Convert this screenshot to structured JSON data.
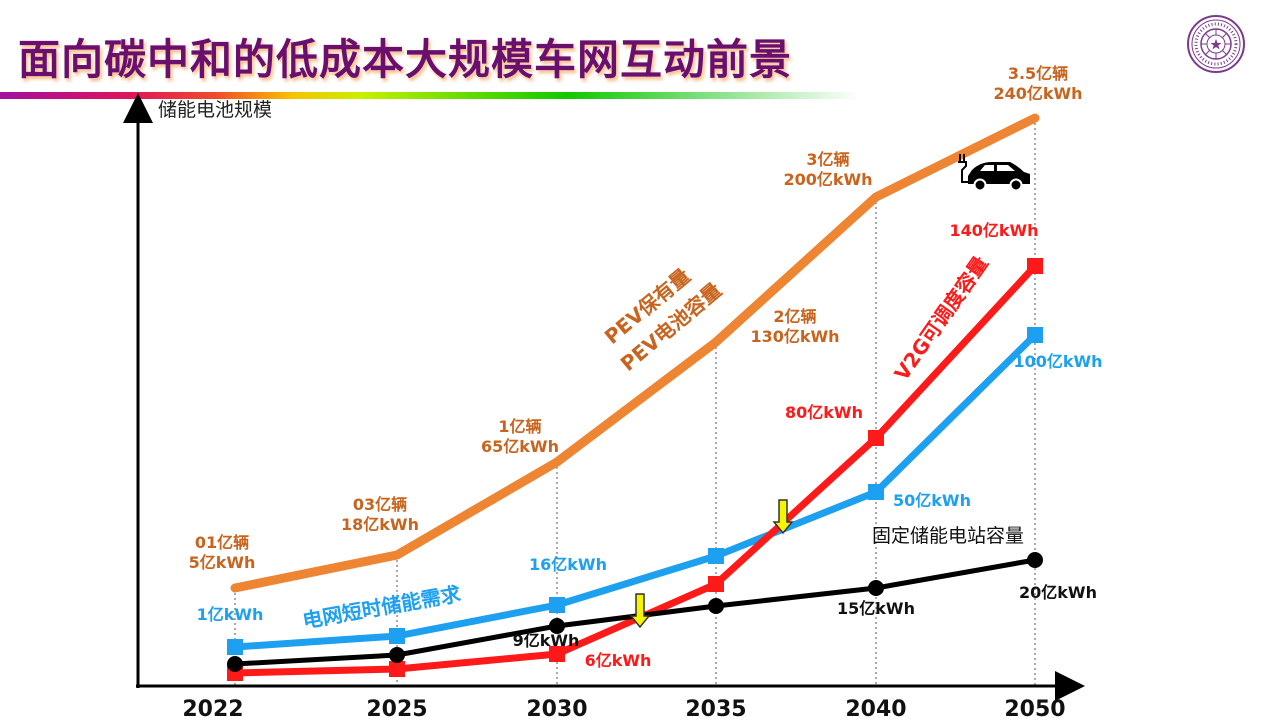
{
  "slide": {
    "title": "面向碳中和的低成本大规模车网互动前景",
    "logo": "tsinghua-university-seal",
    "colors": {
      "title": "#6a0f6e",
      "pev": "#ee8533",
      "grid_demand": "#1ea0f0",
      "v2g": "#ff1a1a",
      "fixed_storage": "#000000",
      "arrow": "#f5f500"
    }
  },
  "chart_data": {
    "type": "line",
    "title": "",
    "ylabel": "储能电池规模",
    "xlabel": "",
    "categories": [
      "2022",
      "2025",
      "2030",
      "2035",
      "2040",
      "2050"
    ],
    "grid": "vertical-dotted",
    "ylim": [
      0,
      250
    ],
    "series": [
      {
        "name": "PEV保有量 / PEV电池容量",
        "label_lines": [
          "PEV保有量",
          "PEV电池容量"
        ],
        "color": "#ee8533",
        "values": [
          5,
          18,
          65,
          130,
          200,
          240
        ],
        "vehicles": [
          "01亿辆",
          "03亿辆",
          "1亿辆",
          "2亿辆",
          "3亿辆",
          "3.5亿辆"
        ],
        "point_labels": [
          [
            "01亿辆",
            "5亿kWh"
          ],
          [
            "03亿辆",
            "18亿kWh"
          ],
          [
            "1亿辆",
            "65亿kWh"
          ],
          [
            "2亿辆",
            "130亿kWh"
          ],
          [
            "3亿辆",
            "200亿kWh"
          ],
          [
            "3.5亿辆",
            "240亿kWh"
          ]
        ],
        "marker": "none"
      },
      {
        "name": "电网短时储能需求",
        "color": "#1ea0f0",
        "values": [
          1,
          3,
          16,
          25,
          50,
          100
        ],
        "point_labels": [
          "1亿kWh",
          "",
          "16亿kWh",
          "",
          "50亿kWh",
          "100亿kWh"
        ],
        "marker": "square"
      },
      {
        "name": "V2G可调度容量",
        "color": "#ff1a1a",
        "values": [
          0.3,
          0.6,
          6,
          22,
          80,
          140
        ],
        "point_labels": [
          "",
          "",
          "6亿kWh",
          "",
          "80亿kWh",
          "140亿kWh"
        ],
        "marker": "square"
      },
      {
        "name": "固定储能电站容量",
        "color": "#000000",
        "values": [
          2,
          4,
          9,
          11,
          15,
          20
        ],
        "point_labels": [
          "",
          "",
          "9亿kWh",
          "",
          "15亿kWh",
          "20亿kWh"
        ],
        "marker": "circle"
      }
    ],
    "annotations": [
      {
        "type": "down-arrow",
        "meaning": "V2G exceeds fixed storage",
        "between": [
          "2030",
          "2035"
        ]
      },
      {
        "type": "down-arrow",
        "meaning": "V2G exceeds grid short-term demand",
        "between": [
          "2035",
          "2040"
        ]
      },
      {
        "type": "car-icon",
        "meaning": "electric vehicle with plug",
        "near": "2050"
      }
    ]
  }
}
